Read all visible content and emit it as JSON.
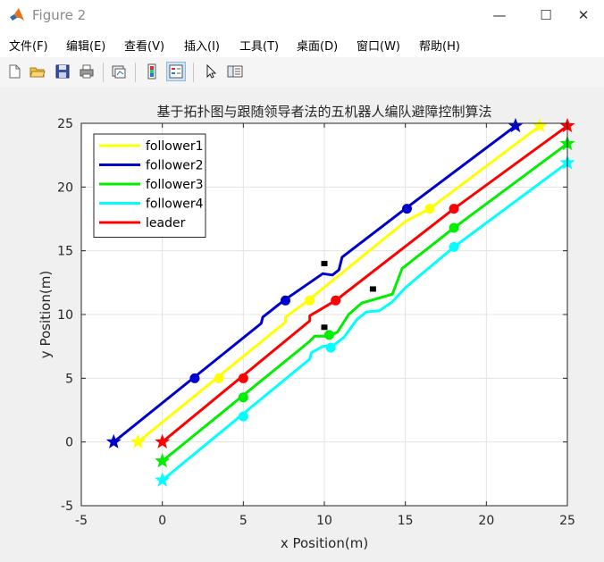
{
  "window": {
    "title": "Figure 2",
    "minimize": "—",
    "maximize": "☐",
    "close": "✕"
  },
  "menu": [
    "文件(F)",
    "编辑(E)",
    "查看(V)",
    "插入(I)",
    "工具(T)",
    "桌面(D)",
    "窗口(W)",
    "帮助(H)"
  ],
  "toolbar": {
    "icons": [
      "new-figure-icon",
      "open-file-icon",
      "save-icon",
      "print-icon",
      "link-plot-icon",
      "colorbar-icon",
      "legend-icon",
      "pointer-icon",
      "property-editor-icon"
    ]
  },
  "chart_data": {
    "type": "line",
    "title": "基于拓扑图与跟随领导者法的五机器人编队避障控制算法",
    "xlabel": "x Position(m)",
    "ylabel": "y Position(m)",
    "xlim": [
      -5,
      25
    ],
    "ylim": [
      -5,
      25
    ],
    "xticks": [
      -5,
      0,
      5,
      10,
      15,
      20,
      25
    ],
    "yticks": [
      -5,
      0,
      5,
      10,
      15,
      20,
      25
    ],
    "grid": true,
    "legend_position": "top-left",
    "obstacles": [
      [
        10,
        14
      ],
      [
        13,
        12
      ],
      [
        10,
        9
      ]
    ],
    "series": [
      {
        "name": "follower1",
        "color": "#ffff00",
        "points": [
          [
            -1.5,
            0
          ],
          [
            7.6,
            9.4
          ],
          [
            7.6,
            9.8
          ],
          [
            8.9,
            11
          ],
          [
            15,
            17.3
          ],
          [
            16.5,
            18.3
          ],
          [
            23.3,
            24.8
          ]
        ],
        "markers": [
          [
            3.5,
            5
          ],
          [
            9.1,
            11.1
          ],
          [
            16.5,
            18.3
          ]
        ],
        "start": [
          -1.5,
          0
        ],
        "end": [
          23.3,
          24.8
        ]
      },
      {
        "name": "follower2",
        "color": "#0000cd",
        "points": [
          [
            -3,
            0
          ],
          [
            6.1,
            9.3
          ],
          [
            6.2,
            9.8
          ],
          [
            7.5,
            11.1
          ],
          [
            9.9,
            13.2
          ],
          [
            10.5,
            13.1
          ],
          [
            10.9,
            13.5
          ],
          [
            11.1,
            14.5
          ],
          [
            15,
            18.3
          ],
          [
            21.8,
            24.8
          ]
        ],
        "markers": [
          [
            2,
            5
          ],
          [
            7.6,
            11.1
          ],
          [
            15.1,
            18.3
          ]
        ],
        "start": [
          -3,
          0
        ],
        "end": [
          21.8,
          24.8
        ]
      },
      {
        "name": "follower3",
        "color": "#00ee00",
        "points": [
          [
            0,
            -1.5
          ],
          [
            9.1,
            7.9
          ],
          [
            9.4,
            8.3
          ],
          [
            10.2,
            8.3
          ],
          [
            10.8,
            8.6
          ],
          [
            11.5,
            10
          ],
          [
            12.3,
            10.9
          ],
          [
            13.4,
            11.3
          ],
          [
            14.2,
            11.6
          ],
          [
            14.8,
            13.6
          ],
          [
            18,
            16.8
          ],
          [
            25,
            23.4
          ]
        ],
        "markers": [
          [
            5,
            3.5
          ],
          [
            10.3,
            8.4
          ],
          [
            18,
            16.8
          ]
        ],
        "start": [
          0,
          -1.5
        ],
        "end": [
          25,
          23.4
        ]
      },
      {
        "name": "follower4",
        "color": "#00ffff",
        "points": [
          [
            0,
            -3
          ],
          [
            9.1,
            6.5
          ],
          [
            9.2,
            7
          ],
          [
            9.9,
            7.5
          ],
          [
            10.6,
            7.6
          ],
          [
            11.2,
            8.2
          ],
          [
            12,
            9.6
          ],
          [
            12.6,
            10.2
          ],
          [
            13.4,
            10.3
          ],
          [
            14.2,
            11
          ],
          [
            15,
            12.1
          ],
          [
            18,
            15.3
          ],
          [
            25,
            21.9
          ]
        ],
        "markers": [
          [
            5,
            2
          ],
          [
            10.4,
            7.4
          ],
          [
            18,
            15.3
          ]
        ],
        "start": [
          0,
          -3
        ],
        "end": [
          25,
          21.9
        ]
      },
      {
        "name": "leader",
        "color": "#ff0000",
        "points": [
          [
            0,
            0
          ],
          [
            9.1,
            9.5
          ],
          [
            9.1,
            9.9
          ],
          [
            10.7,
            11.1
          ],
          [
            18,
            18.3
          ],
          [
            25,
            24.8
          ]
        ],
        "markers": [
          [
            5,
            5
          ],
          [
            10.7,
            11.1
          ],
          [
            18,
            18.3
          ]
        ],
        "start": [
          0,
          0
        ],
        "end": [
          25,
          24.8
        ]
      }
    ]
  }
}
